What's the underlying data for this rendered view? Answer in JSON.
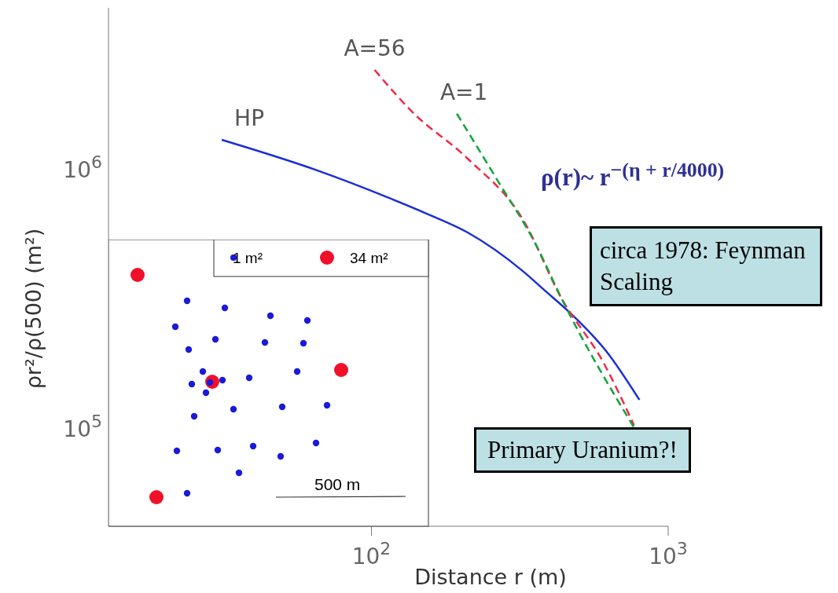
{
  "chart_data": {
    "type": "line",
    "xlabel": "Distance r (m)",
    "ylabel": "ρr²/ρ(500) (m²)",
    "log": "xy",
    "xlim": [
      13,
      1000
    ],
    "ylim": [
      42000,
      4200000
    ],
    "xticks": [
      {
        "value": 100,
        "label": "10$^{2}$"
      },
      {
        "value": 1000,
        "label": "10$^{3}$"
      }
    ],
    "yticks": [
      {
        "value": 100000,
        "label": "10$^{5}$"
      },
      {
        "value": 1000000,
        "label": "10$^{6}$"
      }
    ],
    "grid": false,
    "legend": false,
    "marker": "none",
    "series": [
      {
        "name": "HP",
        "color": "#1a2ed8",
        "line_style": "solid",
        "x": [
          31.3,
          65.3,
          114,
          153,
          211,
          323,
          384,
          476,
          618,
          800
        ],
        "values": [
          1300000,
          993000,
          778000,
          676000,
          571000,
          406000,
          341000,
          274000,
          199000,
          129000
        ]
      },
      {
        "name": "A=56",
        "color": "#ee2a4a",
        "line_style": "dashed",
        "x": [
          102.5,
          137,
          211,
          323,
          437,
          603,
          767
        ],
        "values": [
          2420000,
          1670000,
          1100000,
          644000,
          318000,
          181000,
          103000
        ]
      },
      {
        "name": "A=1",
        "color": "#11a43a",
        "line_style": "dashed",
        "x": [
          194,
          262,
          361,
          437,
          771
        ],
        "values": [
          1640000,
          933000,
          504000,
          318000,
          100000
        ]
      }
    ],
    "annotations": [
      "ρ(r)~ r$^{−(η + r/4000)}$",
      "circa 1978: Feynman Scaling",
      "Primary Uranium?!",
      "1 m²",
      "34 m²",
      "500 m"
    ]
  }
}
